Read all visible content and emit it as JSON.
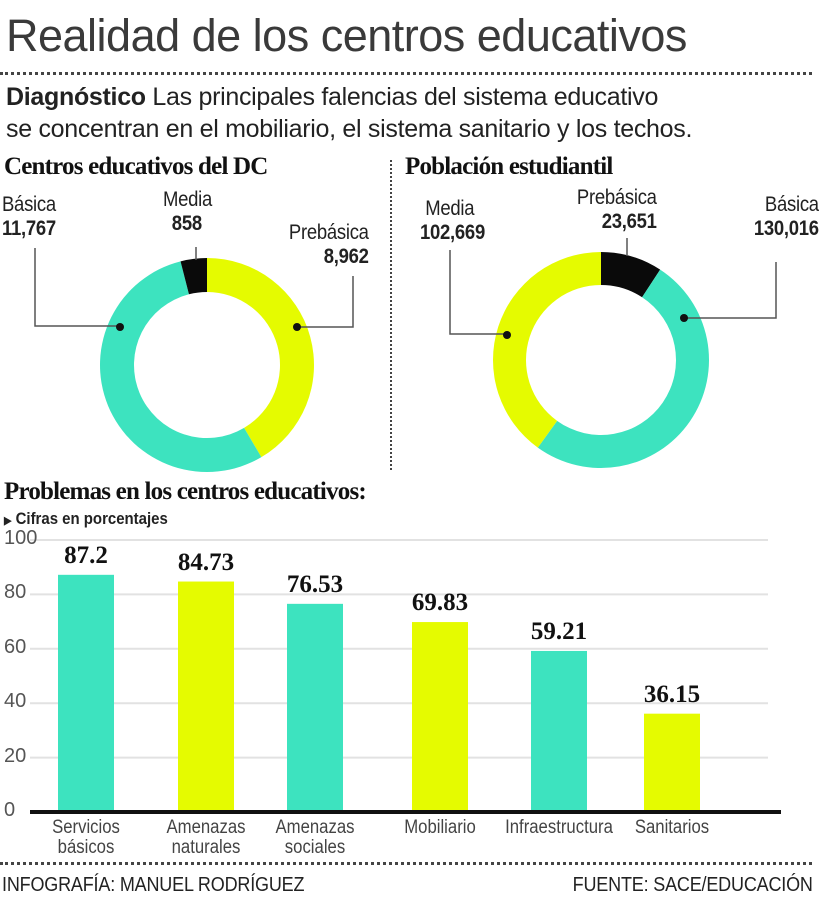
{
  "title": "Realidad de los centros educativos",
  "intro": {
    "lead": "Diagnóstico",
    "line1": " Las principales falencias del sistema educativo",
    "line2": "se concentran en el mobiliario, el sistema sanitario y los techos."
  },
  "colors": {
    "teal": "#3de3bf",
    "yellow": "#e5fb00",
    "black": "#0a0a0a"
  },
  "chart_data": [
    {
      "type": "pie",
      "title": "Centros educativos del DC",
      "slices": [
        {
          "label": "Prebásica",
          "value": 8962,
          "display": "8,962",
          "color": "#e5fb00"
        },
        {
          "label": "Básica",
          "value": 11767,
          "display": "11,767",
          "color": "#3de3bf"
        },
        {
          "label": "Media",
          "value": 858,
          "display": "858",
          "color": "#0a0a0a"
        }
      ]
    },
    {
      "type": "pie",
      "title": "Población estudiantil",
      "slices": [
        {
          "label": "Prebásica",
          "value": 23651,
          "display": "23,651",
          "color": "#0a0a0a"
        },
        {
          "label": "Básica",
          "value": 130016,
          "display": "130,016",
          "color": "#3de3bf"
        },
        {
          "label": "Media",
          "value": 102669,
          "display": "102,669",
          "color": "#e5fb00"
        }
      ]
    },
    {
      "type": "bar",
      "title": "Problemas en los centros educativos:",
      "subtitle": "Cifras en porcentajes",
      "categories": [
        "Servicios\nbásicos",
        "Amenazas\nnaturales",
        "Amenazas\nsociales",
        "Mobiliario",
        "Infraestructura",
        "Sanitarios"
      ],
      "values": [
        87.2,
        84.73,
        76.53,
        69.83,
        59.21,
        36.15
      ],
      "labels": [
        "87.2",
        "84.73",
        "76.53",
        "69.83",
        "59.21",
        "36.15"
      ],
      "colors": [
        "#3de3bf",
        "#e5fb00",
        "#3de3bf",
        "#e5fb00",
        "#3de3bf",
        "#e5fb00"
      ],
      "ylim": [
        0,
        100
      ],
      "yticks": [
        "0",
        "20",
        "40",
        "60",
        "80",
        "100"
      ],
      "grid": true
    }
  ],
  "footer": {
    "credit": "INFOGRAFÍA: MANUEL RODRÍGUEZ",
    "source": "FUENTE: SACE/EDUCACIÓN"
  }
}
